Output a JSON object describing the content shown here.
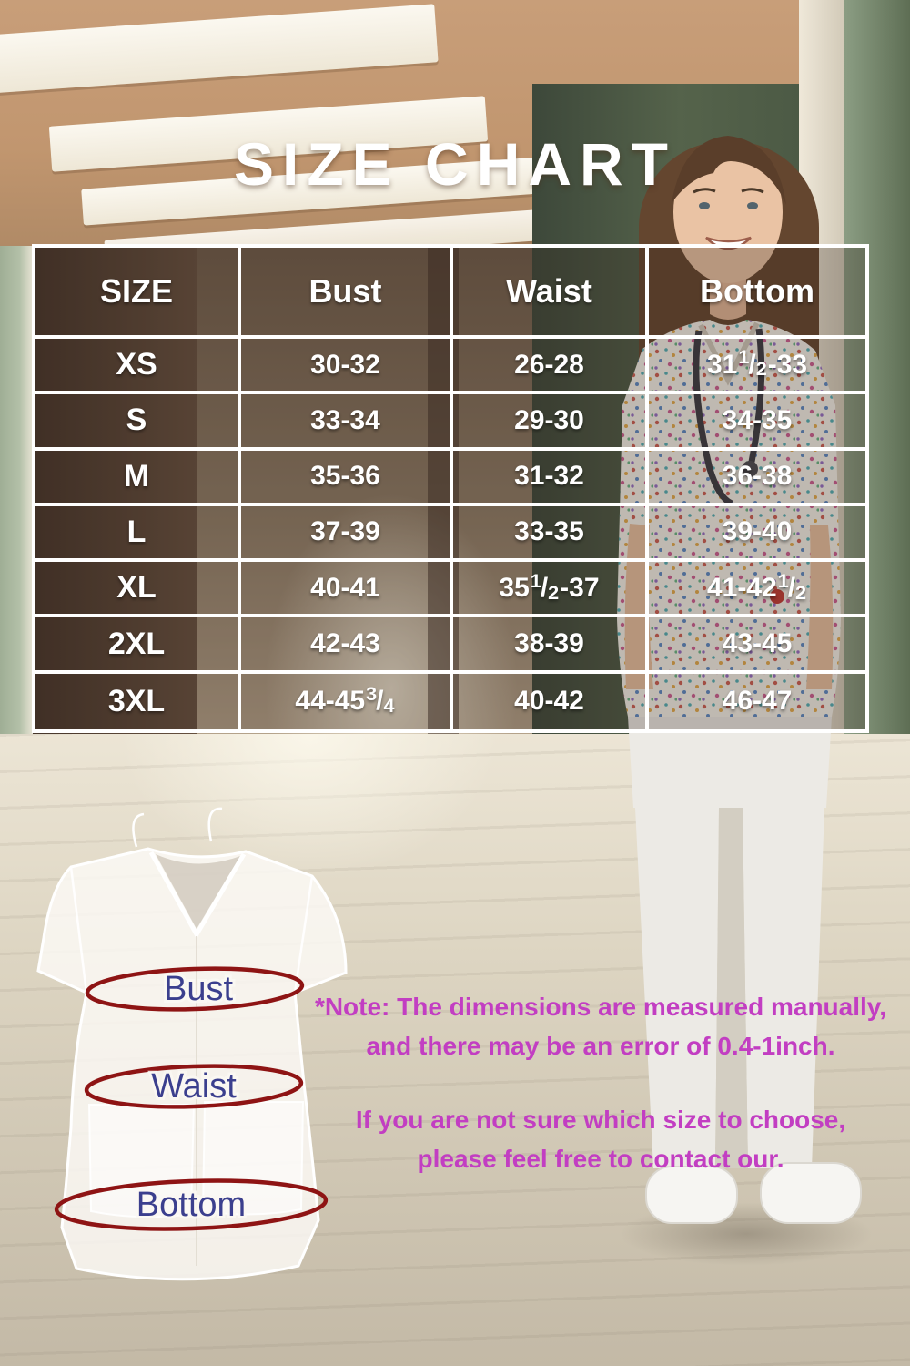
{
  "page": {
    "title": "SIZE CHART"
  },
  "size_table": {
    "headers": [
      "SIZE",
      "Bust",
      "Waist",
      "Bottom"
    ],
    "rows": [
      {
        "size": "XS",
        "bust": "30-32",
        "waist": "26-28",
        "bottom": "31½-33"
      },
      {
        "size": "S",
        "bust": "33-34",
        "waist": "29-30",
        "bottom": "34-35"
      },
      {
        "size": "M",
        "bust": "35-36",
        "waist": "31-32",
        "bottom": "36-38"
      },
      {
        "size": "L",
        "bust": "37-39",
        "waist": "33-35",
        "bottom": "39-40"
      },
      {
        "size": "XL",
        "bust": "40-41",
        "waist": "35½-37",
        "bottom": "41-42½"
      },
      {
        "size": "2XL",
        "bust": "42-43",
        "waist": "38-39",
        "bottom": "43-45"
      },
      {
        "size": "3XL",
        "bust": "44-45¾",
        "waist": "40-42",
        "bottom": "46-47"
      }
    ]
  },
  "measure_diagram": {
    "bust_label": "Bust",
    "waist_label": "Waist",
    "bottom_label": "Bottom"
  },
  "notes": {
    "note_line1": "*Note: The dimensions are measured manually,",
    "note_line2": "and there may be an error of 0.4-1inch.",
    "contact_line1": "If you are not sure which size to choose,",
    "contact_line2": "please feel free to contact our."
  },
  "colors": {
    "note_text": "#c23ec2",
    "diagram_label": "#3b3f8e",
    "measure_line": "#8e1414",
    "table_border": "#ffffff",
    "table_text": "#ffffff"
  }
}
